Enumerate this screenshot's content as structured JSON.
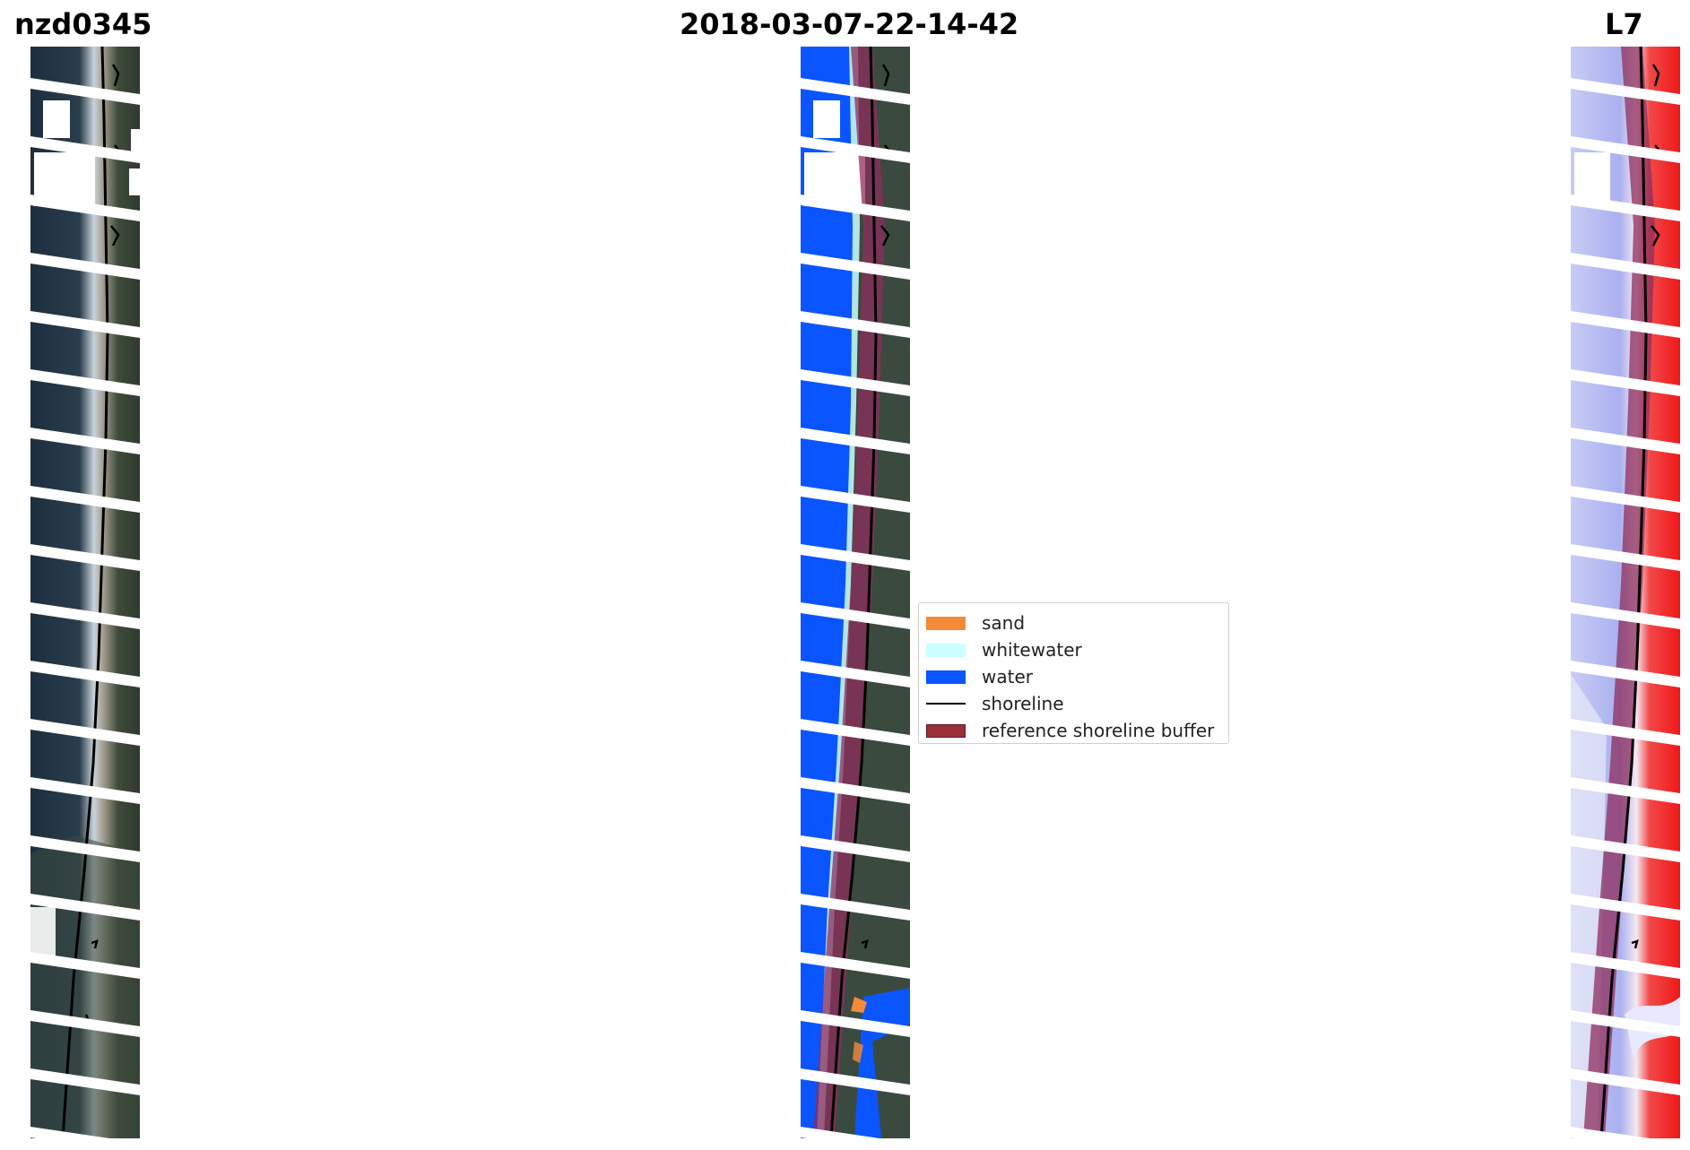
{
  "titles": {
    "left": "nzd0345",
    "center": "2018-03-07-22-14-42",
    "right": "L7"
  },
  "legend": {
    "items": [
      {
        "label": "sand",
        "color": "#f58a3a",
        "kind": "patch"
      },
      {
        "label": "whitewater",
        "color": "#ccffff",
        "kind": "patch"
      },
      {
        "label": "water",
        "color": "#0a55ff",
        "kind": "patch"
      },
      {
        "label": "shoreline",
        "color": "#000000",
        "kind": "line"
      },
      {
        "label": "reference shoreline buffer",
        "color": "#9b2f3a",
        "kind": "patch"
      }
    ]
  },
  "colors": {
    "water_dark": "#1c2e3e",
    "land": "#3d4a38",
    "buffer": "#8e2e5c",
    "index_water": "#aab0f0",
    "index_land": "#f01818"
  }
}
